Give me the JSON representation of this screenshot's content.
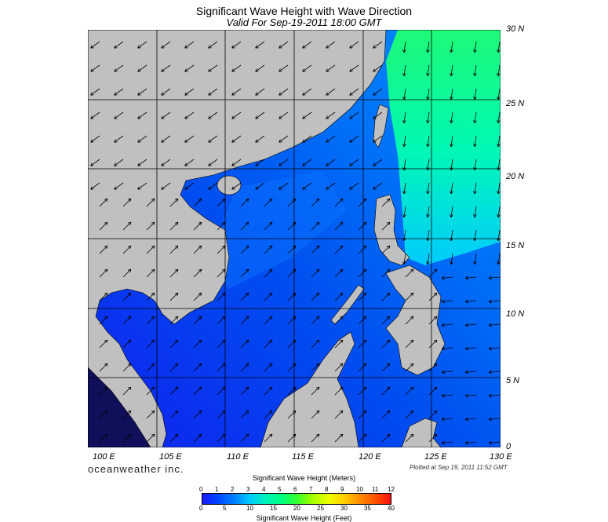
{
  "header": {
    "title": "Significant Wave Height with Wave Direction",
    "subtitle": "Valid For Sep-19-2011 18:00 GMT"
  },
  "map": {
    "latitude_labels": [
      "30 N",
      "25 N",
      "20 N",
      "15 N",
      "10 N",
      "5 N",
      "0"
    ],
    "longitude_labels": [
      "100 E",
      "105 E",
      "110 E",
      "115 E",
      "120 E",
      "125 E",
      "130 E"
    ],
    "extent": {
      "lon_min": 100,
      "lon_max": 130,
      "lat_min": 0,
      "lat_max": 30
    },
    "colors": {
      "land": "#c0c0c0",
      "water_low": "#1a1aff",
      "water_mid": "#0080ff",
      "water_high": "#00ff80",
      "arrow": "#000000"
    }
  },
  "footer": {
    "brand": "oceanweather inc.",
    "plotted": "Plotted at Sep 19, 2011 11:52 GMT"
  },
  "legend": {
    "title_meters": "Significant Wave Height (Meters)",
    "title_feet": "Significant Wave Height (Feet)",
    "meters_ticks": [
      "0",
      "1",
      "2",
      "3",
      "4",
      "5",
      "6",
      "7",
      "8",
      "9",
      "10",
      "11",
      "12"
    ],
    "feet_ticks": [
      "0",
      "5",
      "10",
      "15",
      "20",
      "25",
      "30",
      "35",
      "40"
    ]
  }
}
